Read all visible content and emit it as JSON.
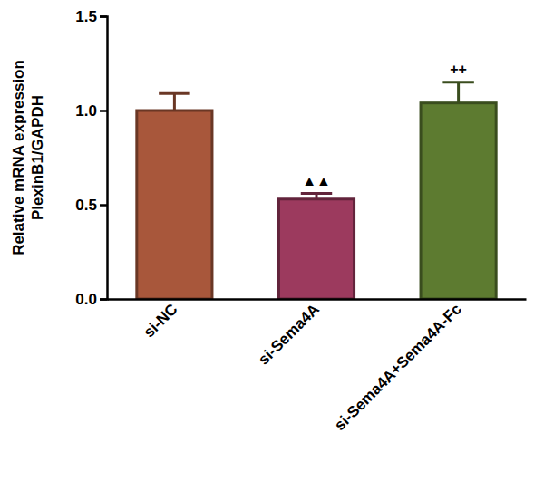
{
  "chart_data": {
    "type": "bar",
    "y_label": [
      "Relative mRNA expression",
      "PlexinB1/GAPDH"
    ],
    "categories": [
      "si-NC",
      "si-Sema4A",
      "si-Sema4A+Sema4A-Fc"
    ],
    "values": [
      1.0,
      0.53,
      1.04
    ],
    "errors": [
      0.09,
      0.03,
      0.11
    ],
    "colors": [
      "#a8573b",
      "#9c3a5e",
      "#5d7b30"
    ],
    "annotations": [
      {
        "category": "si-Sema4A",
        "text": "▲▲"
      },
      {
        "category": "si-Sema4A+Sema4A-Fc",
        "text": "++"
      }
    ],
    "ylim": [
      0,
      1.5
    ],
    "yticks": [
      {
        "value": 0,
        "label": "0.0"
      },
      {
        "value": 0.5,
        "label": "0.5"
      },
      {
        "value": 1.0,
        "label": "1.0"
      },
      {
        "value": 1.5,
        "label": "1.5"
      }
    ],
    "grid": false
  }
}
